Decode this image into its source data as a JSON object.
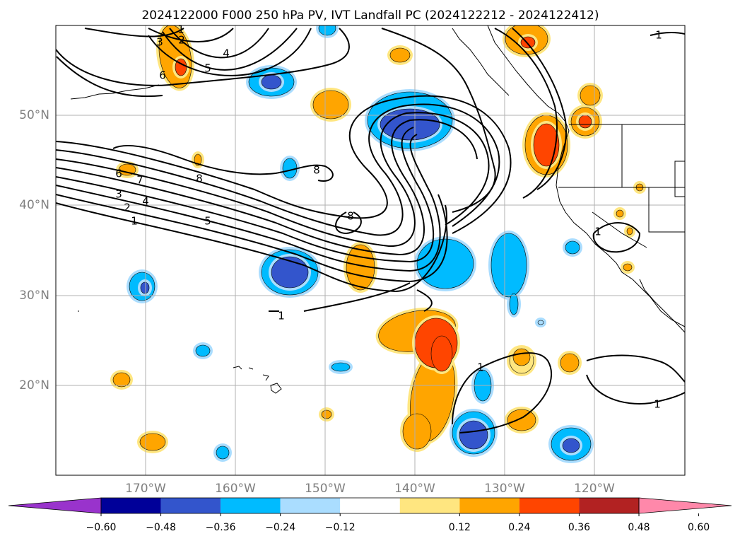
{
  "title": "2024122000 F000 250 hPa PV, IVT Landfall PC (2024122212 - 2024122412)",
  "lat_ticks": [
    "50°N",
    "40°N",
    "30°N",
    "20°N"
  ],
  "lon_ticks": [
    "170°W",
    "160°W",
    "150°W",
    "140°W",
    "130°W",
    "120°W"
  ],
  "contour_labels": [
    "1",
    "2",
    "3",
    "4",
    "5",
    "6",
    "1",
    "2",
    "3",
    "4",
    "5",
    "6",
    "7",
    "8",
    "8",
    "8",
    "1",
    "1",
    "1",
    "1",
    "1"
  ],
  "colorbar": {
    "tick_labels": [
      "−0.60",
      "−0.48",
      "−0.36",
      "−0.24",
      "−0.12",
      "0.12",
      "0.24",
      "0.36",
      "0.48",
      "0.60"
    ],
    "colors": [
      "#9933cc",
      "#000099",
      "#3355cc",
      "#00bbff",
      "#aaddff",
      "#ffffff",
      "#ffe680",
      "#ffa500",
      "#ff4500",
      "#b22222",
      "#ff88aa"
    ]
  },
  "colors": {
    "neg_light": "#aaddff",
    "neg_mid": "#00bbff",
    "neg_strong": "#3355cc",
    "pos_light": "#ffe680",
    "pos_mid": "#ffa500",
    "pos_strong": "#ff4500",
    "contour": "#000000",
    "grid": "#b0b0b0",
    "tick_label": "#808080"
  }
}
